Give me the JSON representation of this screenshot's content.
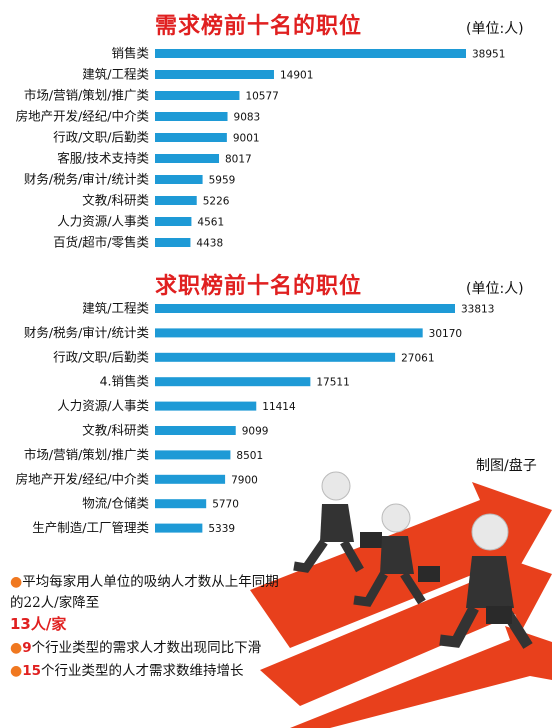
{
  "chart_data": [
    {
      "type": "bar",
      "orientation": "horizontal",
      "title": "需求榜前十名的职位",
      "unit": "(单位:人)",
      "categories": [
        "销售类",
        "建筑/工程类",
        "市场/营销/策划/推广类",
        "房地产开发/经纪/中介类",
        "行政/文职/后勤类",
        "客服/技术支持类",
        "财务/税务/审计/统计类",
        "文教/科研类",
        "人力资源/人事类",
        "百货/超市/零售类"
      ],
      "values": [
        38951,
        14901,
        10577,
        9083,
        9001,
        8017,
        5959,
        5226,
        4561,
        4438
      ],
      "bar_color": "#1e9ad6"
    },
    {
      "type": "bar",
      "orientation": "horizontal",
      "title": "求职榜前十名的职位",
      "unit": "(单位:人)",
      "categories": [
        "建筑/工程类",
        "财务/税务/审计/统计类",
        "行政/文职/后勤类",
        "4.销售类",
        "人力资源/人事类",
        "文教/科研类",
        "市场/营销/策划/推广类",
        "房地产开发/经纪/中介类",
        "物流/仓储类",
        "生产制造/工厂管理类"
      ],
      "values": [
        33813,
        30170,
        27061,
        17511,
        11414,
        9099,
        8501,
        7900,
        5770,
        5339
      ],
      "bar_color": "#1e9ad6"
    }
  ],
  "credit": "制图/盘子",
  "notes": {
    "n1_text": "平均每家用人单位的吸纳人才数从上年同期的22人/家降至",
    "n1_highlight": "13人/家",
    "n2_num": "9",
    "n2_text": "个行业类型的需求人才数出现同比下滑",
    "n3_num": "15",
    "n3_text": "个行业类型的人才需求数维持增长"
  },
  "colors": {
    "title": "#e02020",
    "bar": "#1e9ad6",
    "bullet": "#f07820",
    "arrow": "#e8401c"
  }
}
